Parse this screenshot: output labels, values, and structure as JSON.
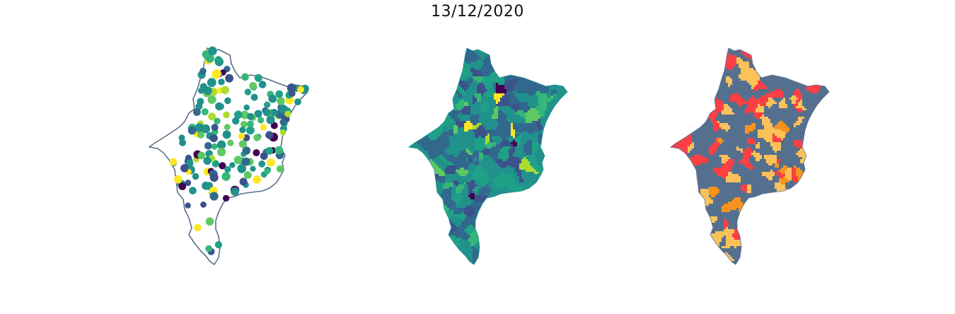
{
  "figure": {
    "title": "13/12/2020"
  },
  "panels": [
    {
      "kind": "points",
      "outline_color": "#5b6f8a"
    },
    {
      "kind": "choropleth-continuous"
    },
    {
      "kind": "choropleth-categorical"
    }
  ],
  "colors": {
    "viridis": [
      "#440154",
      "#3b528b",
      "#31688e",
      "#21918c",
      "#1fa187",
      "#35b779",
      "#5ec962",
      "#addc30",
      "#fde725"
    ],
    "categories": [
      "#55708f",
      "#fbc25a",
      "#fb3f45",
      "#f7941d"
    ]
  }
}
